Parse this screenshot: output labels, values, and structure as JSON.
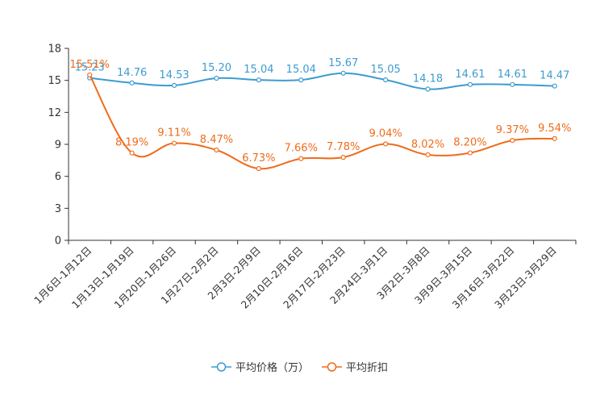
{
  "chart_data": {
    "type": "line",
    "title": "",
    "categories": [
      "1月6日-1月12日",
      "1月13日-1月19日",
      "1月20日-1月26日",
      "1月27日-2月2日",
      "2月3日-2月9日",
      "2月10日-2月16日",
      "2月17日-2月23日",
      "2月24日-3月1日",
      "3月2日-3月8日",
      "3月9日-3月15日",
      "3月16日-3月22日",
      "3月23日-3月29日"
    ],
    "ylim": [
      0,
      18
    ],
    "yticks": [
      0,
      3,
      6,
      9,
      12,
      15,
      18
    ],
    "series": [
      {
        "name": "平均价格（万）",
        "color": "#3d9bd1",
        "values": [
          15.23,
          14.76,
          14.53,
          15.2,
          15.04,
          15.04,
          15.67,
          15.05,
          14.18,
          14.61,
          14.61,
          14.47
        ],
        "labels": [
          "15.23",
          "14.76",
          "14.53",
          "15.20",
          "15.04",
          "15.04",
          "15.67",
          "15.05",
          "14.18",
          "14.61",
          "14.61",
          "14.47"
        ]
      },
      {
        "name": "平均折扣",
        "color": "#ef6c1b",
        "values": [
          15.51,
          8.19,
          9.11,
          8.47,
          6.73,
          7.66,
          7.78,
          9.04,
          8.02,
          8.2,
          9.37,
          9.54
        ],
        "labels": [
          "15.51%",
          "8.19%",
          "9.11%",
          "8.47%",
          "6.73%",
          "7.66%",
          "7.78%",
          "9.04%",
          "8.02%",
          "8.20%",
          "9.37%",
          "9.54%"
        ]
      }
    ],
    "legend_position": "bottom-center"
  }
}
